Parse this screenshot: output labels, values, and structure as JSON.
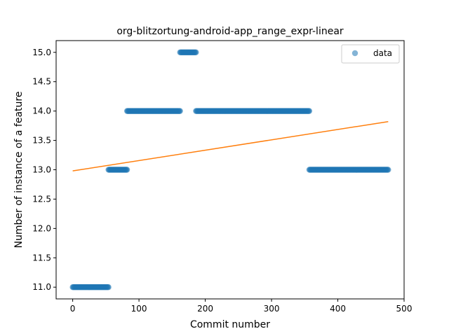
{
  "chart_data": {
    "type": "scatter",
    "title": "org-blitzortung-android-app_range_expr-linear",
    "xlabel": "Commit number",
    "ylabel": "Number of instance of a feature",
    "xlim": [
      -25,
      500
    ],
    "ylim": [
      10.8,
      15.2
    ],
    "x_ticks": [
      "0",
      "100",
      "200",
      "300",
      "400",
      "500"
    ],
    "y_ticks": [
      "11.0",
      "11.5",
      "12.0",
      "12.5",
      "13.0",
      "13.5",
      "14.0",
      "14.5",
      "15.0"
    ],
    "legend": {
      "position": "top-right",
      "entries": [
        "data"
      ]
    },
    "series": [
      {
        "name": "data",
        "kind": "points",
        "color": "#1f77b4",
        "segments": [
          {
            "x_start": 0,
            "x_end": 54,
            "y": 11.0
          },
          {
            "x_start": 54,
            "x_end": 82,
            "y": 13.0
          },
          {
            "x_start": 82,
            "x_end": 162,
            "y": 14.0
          },
          {
            "x_start": 162,
            "x_end": 186,
            "y": 15.0
          },
          {
            "x_start": 186,
            "x_end": 357,
            "y": 14.0
          },
          {
            "x_start": 357,
            "x_end": 476,
            "y": 13.0
          }
        ]
      },
      {
        "name": "",
        "kind": "line",
        "color": "#ff7f0e",
        "points": [
          [
            0,
            12.98
          ],
          [
            476,
            13.82
          ]
        ]
      }
    ]
  }
}
